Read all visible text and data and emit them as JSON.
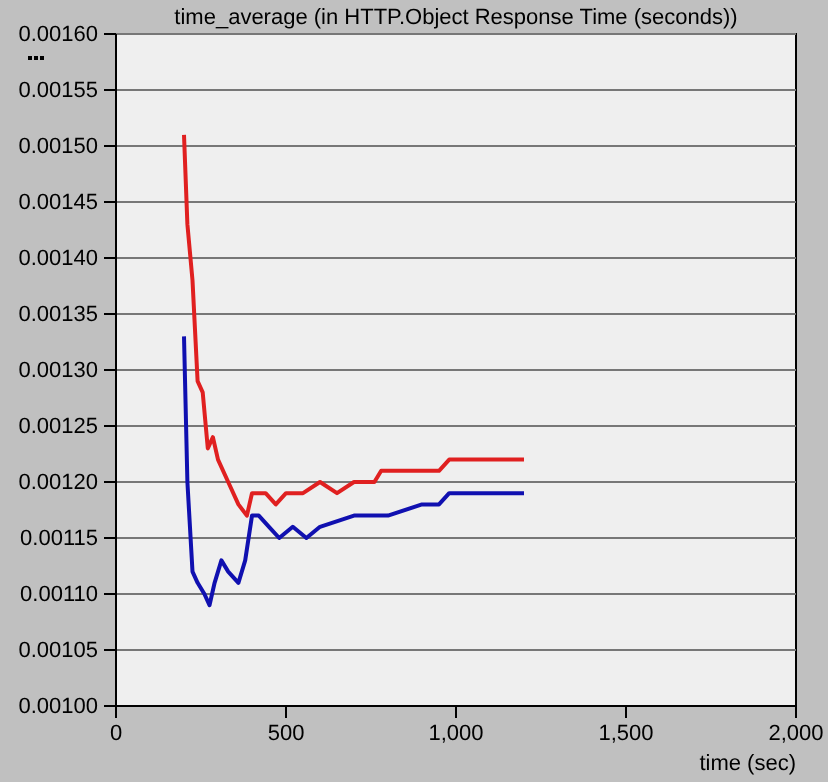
{
  "chart_data": {
    "type": "line",
    "title": "time_average (in HTTP.Object Response Time (seconds))",
    "xlabel": "time (sec)",
    "xlim": [
      0,
      2000
    ],
    "xticks": [
      0,
      500,
      {
        "value": 1000,
        "label": "1,000"
      },
      {
        "value": 1500,
        "label": "1,500"
      },
      {
        "value": 2000,
        "label": "2,000"
      }
    ],
    "ylim": [
      0.001,
      0.0016
    ],
    "yticks": [
      {
        "value": 0.001,
        "label": "0.00100"
      },
      {
        "value": 0.00105,
        "label": "0.00105"
      },
      {
        "value": 0.0011,
        "label": "0.00110"
      },
      {
        "value": 0.00115,
        "label": "0.00115"
      },
      {
        "value": 0.0012,
        "label": "0.00120"
      },
      {
        "value": 0.00125,
        "label": "0.00125"
      },
      {
        "value": 0.0013,
        "label": "0.00130"
      },
      {
        "value": 0.00135,
        "label": "0.00135"
      },
      {
        "value": 0.0014,
        "label": "0.00140"
      },
      {
        "value": 0.00145,
        "label": "0.00145"
      },
      {
        "value": 0.0015,
        "label": "0.00150"
      },
      {
        "value": 0.00155,
        "label": "0.00155"
      },
      {
        "value": 0.0016,
        "label": "0.00160"
      }
    ],
    "grid": "y",
    "marker": "none",
    "line_style": "solid",
    "series": [
      {
        "color": "#e02020",
        "x": [
          200,
          210,
          225,
          240,
          255,
          270,
          285,
          300,
          330,
          360,
          385,
          400,
          440,
          470,
          500,
          550,
          600,
          650,
          700,
          760,
          780,
          880,
          950,
          980,
          1200
        ],
        "values": [
          0.00151,
          0.00143,
          0.00138,
          0.00129,
          0.00128,
          0.00123,
          0.00124,
          0.00122,
          0.0012,
          0.00118,
          0.00117,
          0.00119,
          0.00119,
          0.00118,
          0.00119,
          0.00119,
          0.0012,
          0.00119,
          0.0012,
          0.0012,
          0.00121,
          0.00121,
          0.00121,
          0.00122,
          0.00122
        ]
      },
      {
        "color": "#1010b0",
        "x": [
          200,
          210,
          225,
          240,
          260,
          275,
          290,
          310,
          330,
          360,
          380,
          400,
          420,
          450,
          480,
          520,
          560,
          600,
          700,
          800,
          900,
          950,
          980,
          1200
        ],
        "values": [
          0.00133,
          0.0012,
          0.00112,
          0.00111,
          0.0011,
          0.00109,
          0.00111,
          0.00113,
          0.00112,
          0.00111,
          0.00113,
          0.00117,
          0.00117,
          0.00116,
          0.00115,
          0.00116,
          0.00115,
          0.00116,
          0.00117,
          0.00117,
          0.00118,
          0.00118,
          0.00119,
          0.00119
        ]
      }
    ]
  }
}
